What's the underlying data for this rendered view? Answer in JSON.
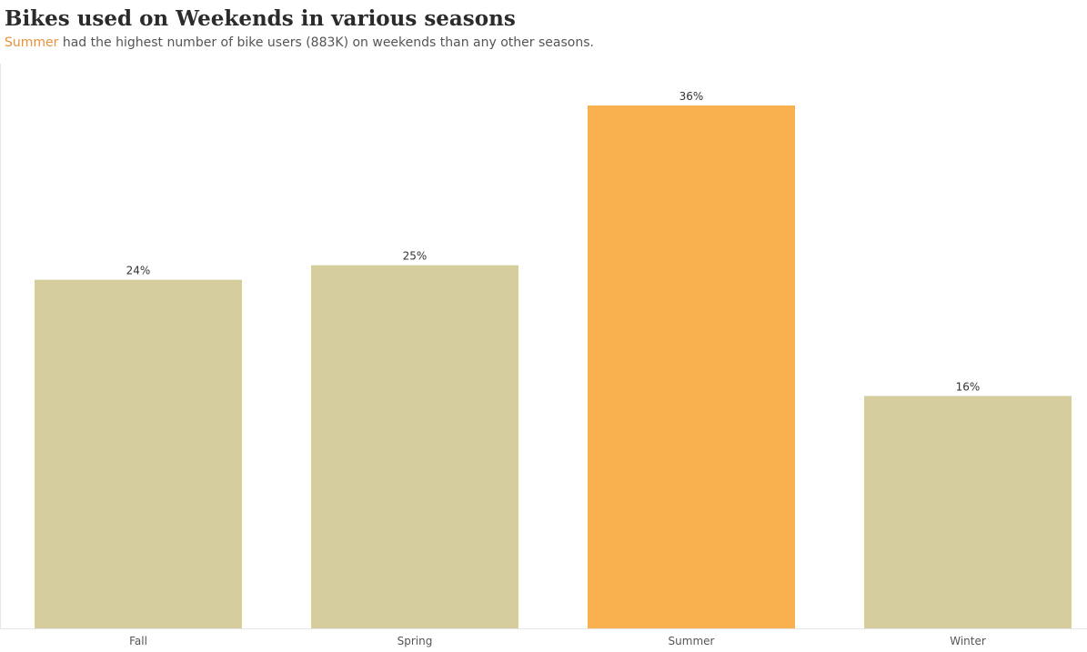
{
  "chart_data": {
    "type": "bar",
    "title": "Bikes used on Weekends in various seasons",
    "subtitle": {
      "highlight": "Summer",
      "rest": " had the highest number of bike users (883K) on weekends than any other seasons."
    },
    "categories": [
      "Fall",
      "Spring",
      "Summer",
      "Winter"
    ],
    "values": [
      24,
      25,
      36,
      16
    ],
    "value_labels": [
      "24%",
      "25%",
      "36%",
      "16%"
    ],
    "unit": "%",
    "ylim": [
      0,
      36
    ],
    "grid": false,
    "legend": "none",
    "highlight_category": "Summer",
    "colors": {
      "default_bar": "#d6cd9e",
      "highlight_bar": "#f9b04e",
      "highlight_text": "#e8923a",
      "axis_line": "#e6e6e6"
    }
  }
}
